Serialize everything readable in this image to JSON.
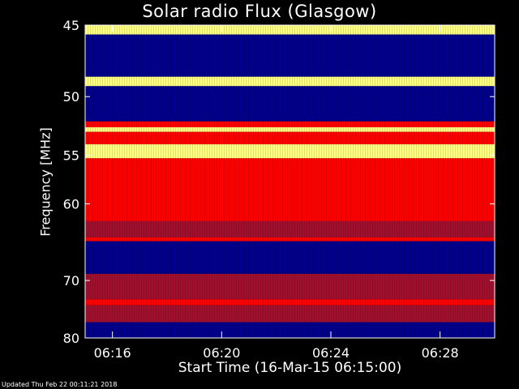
{
  "chart_data": {
    "type": "heatmap",
    "title": "Solar radio Flux (Glasgow)",
    "xlabel": "Start Time (16-Mar-15 06:15:00)",
    "ylabel": "Frequency [MHz]",
    "x_ticks": [
      "06:16",
      "06:20",
      "06:24",
      "06:28"
    ],
    "x_tick_minutes": [
      16,
      20,
      24,
      28
    ],
    "x_range_minutes": [
      15,
      30
    ],
    "y_ticks": [
      45,
      50,
      55,
      60,
      70,
      80
    ],
    "ylim": [
      45,
      80
    ],
    "y_scale": "reciprocal",
    "colors": {
      "background": "#000000",
      "low": "#00008b",
      "mid": "#ff0000",
      "high": "#ffff80"
    },
    "frequency_bands": [
      {
        "freq": [
          45.0,
          45.6
        ],
        "level": "high"
      },
      {
        "freq": [
          45.6,
          48.5
        ],
        "level": "low"
      },
      {
        "freq": [
          48.5,
          49.2
        ],
        "level": "high"
      },
      {
        "freq": [
          49.2,
          52.0
        ],
        "level": "low"
      },
      {
        "freq": [
          52.0,
          52.5
        ],
        "level": "mid"
      },
      {
        "freq": [
          52.5,
          52.9
        ],
        "level": "high"
      },
      {
        "freq": [
          52.9,
          54.0
        ],
        "level": "mid"
      },
      {
        "freq": [
          54.0,
          55.3
        ],
        "level": "high"
      },
      {
        "freq": [
          55.3,
          62.0
        ],
        "level": "mid"
      },
      {
        "freq": [
          62.0,
          64.0
        ],
        "level": "mid-low"
      },
      {
        "freq": [
          64.0,
          64.5
        ],
        "level": "mid"
      },
      {
        "freq": [
          64.5,
          69.0
        ],
        "level": "low"
      },
      {
        "freq": [
          69.0,
          73.0
        ],
        "level": "mid-low"
      },
      {
        "freq": [
          73.0,
          74.0
        ],
        "level": "mid"
      },
      {
        "freq": [
          74.0,
          77.0
        ],
        "level": "mid-low"
      },
      {
        "freq": [
          77.0,
          80.0
        ],
        "level": "low"
      }
    ]
  },
  "footer": "Updated Thu Feb 22 00:11:21 2018"
}
